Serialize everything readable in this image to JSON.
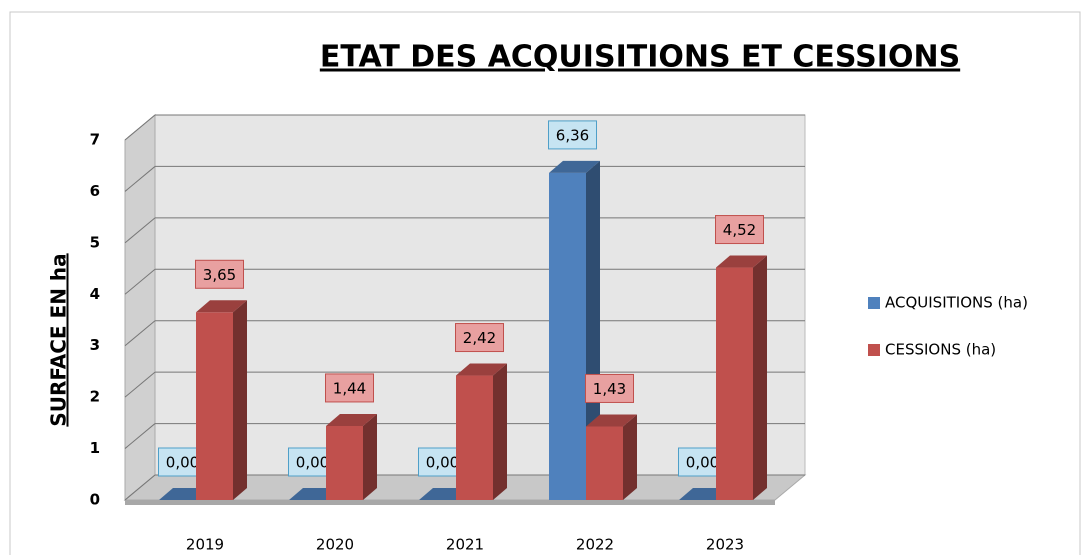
{
  "chart_data": {
    "type": "bar3d",
    "title": "ETAT DES ACQUISITIONS ET CESSIONS",
    "y_label": "SURFACE EN ha",
    "categories": [
      "2019",
      "2020",
      "2021",
      "2022",
      "2023"
    ],
    "series": [
      {
        "name": "ACQUISITIONS (ha)",
        "color": "#4f81bd",
        "values": [
          0,
          0,
          0,
          6.36,
          0
        ],
        "value_labels": [
          "0,00",
          "0,00",
          "0,00",
          "6,36",
          "0,00"
        ]
      },
      {
        "name": "CESSIONS (ha)",
        "color": "#c0504d",
        "values": [
          3.65,
          1.44,
          2.42,
          1.43,
          4.52
        ],
        "value_labels": [
          "3,65",
          "1,44",
          "2,42",
          "1,43",
          "4,52"
        ]
      }
    ],
    "ylim": [
      0,
      7
    ],
    "yticks": [
      0,
      1,
      2,
      3,
      4,
      5,
      6,
      7
    ],
    "grid": true,
    "legend": "right"
  }
}
